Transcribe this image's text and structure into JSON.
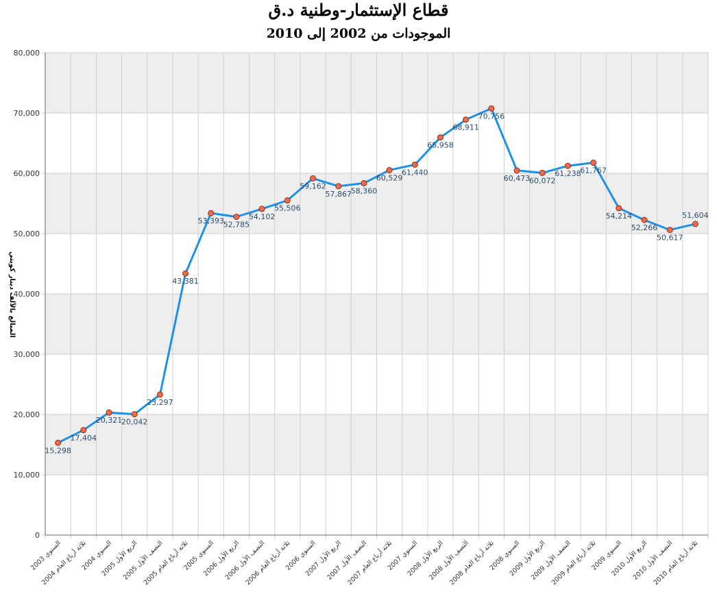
{
  "chart_data": {
    "type": "line",
    "title": "قطاع الإستثمار-وطنية د.ق",
    "subtitle": "الموجودات من 2002 إلى 2010",
    "ylabel": "المبالغ بالآلف دينار كويتي",
    "xlabel": "",
    "ylim": [
      0,
      80000
    ],
    "yticks": [
      0,
      10000,
      20000,
      30000,
      40000,
      50000,
      60000,
      70000,
      80000
    ],
    "ytick_labels": [
      "0",
      "10,000",
      "20,000",
      "30,000",
      "40,000",
      "50,000",
      "60,000",
      "70,000",
      "80,000"
    ],
    "grid": true,
    "line_color": "#1e90e8",
    "marker_color": "#f26b4a",
    "band_color": "#eeeeee",
    "categories": [
      "السنوي 2003",
      "ثلاثة أرباع العام 2004",
      "السنوي 2004",
      "الربع الأول 2005",
      "النصف الأول 2005",
      "ثلاثة أرباع العام 2005",
      "السنوي 2005",
      "الربع الأول 2006",
      "النصف الأول 2006",
      "ثلاثة أرباع العام 2006",
      "السنوي 2006",
      "الربع الأول 2007",
      "النصف الأول 2007",
      "ثلاثة أرباع العام 2007",
      "السنوي 2007",
      "الربع الأول 2008",
      "النصف الأول 2008",
      "ثلاثة أرباع العام 2008",
      "السنوي 2008",
      "الربع الأول 2009",
      "النصف الأول 2009",
      "ثلاثة أرباع العام 2009",
      "السنوي 2009",
      "الربع الأول 2010",
      "النصف الأول 2010",
      "ثلاثة أرباع العام 2010"
    ],
    "values": [
      15298,
      17404,
      20321,
      20042,
      23297,
      43381,
      53393,
      52785,
      54102,
      55506,
      59162,
      57867,
      58360,
      60529,
      61440,
      65958,
      68911,
      70756,
      60473,
      60072,
      61238,
      61767,
      54214,
      52266,
      50617,
      51604
    ],
    "value_labels": [
      "15,298",
      "17,404",
      "20,321",
      "20,042",
      "23,297",
      "43,381",
      "53,393",
      "52,785",
      "54,102",
      "55,506",
      "59,162",
      "57,867",
      "58,360",
      "60,529",
      "61,440",
      "65,958",
      "68,911",
      "70,756",
      "60,473",
      "60,072",
      "61,238",
      "61,767",
      "54,214",
      "52,266",
      "50,617",
      "51,604"
    ]
  }
}
